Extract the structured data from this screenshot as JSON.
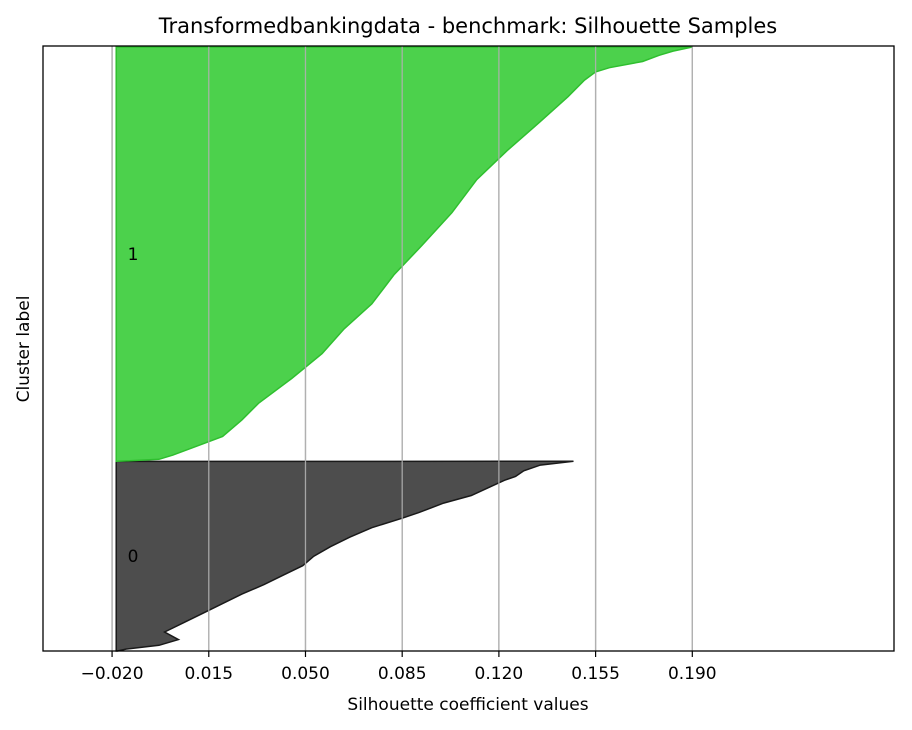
{
  "chart_data": {
    "type": "area",
    "title": "Transformedbankingdata - benchmark: Silhouette Samples",
    "xlabel": "Silhouette coefficient values",
    "ylabel": "Cluster label",
    "xlim": [
      -0.045,
      0.263
    ],
    "x_ticks": [
      -0.02,
      0.015,
      0.05,
      0.085,
      0.12,
      0.155,
      0.19
    ],
    "x_tick_labels": [
      "−0.020",
      "0.015",
      "0.050",
      "0.085",
      "0.120",
      "0.155",
      "0.190"
    ],
    "grid": "vertical",
    "clusters": [
      {
        "label": "0",
        "color": "#4d4d4d",
        "edge_color": "#1a1a1a",
        "size_fraction": 0.314,
        "profile": [
          [
            0.0,
            0.147
          ],
          [
            0.02,
            0.135
          ],
          [
            0.05,
            0.129
          ],
          [
            0.08,
            0.126
          ],
          [
            0.1,
            0.122
          ],
          [
            0.14,
            0.116
          ],
          [
            0.18,
            0.11
          ],
          [
            0.22,
            0.1
          ],
          [
            0.27,
            0.091
          ],
          [
            0.3,
            0.085
          ],
          [
            0.35,
            0.074
          ],
          [
            0.4,
            0.066
          ],
          [
            0.45,
            0.059
          ],
          [
            0.5,
            0.053
          ],
          [
            0.55,
            0.049
          ],
          [
            0.6,
            0.042
          ],
          [
            0.65,
            0.035
          ],
          [
            0.7,
            0.027
          ],
          [
            0.75,
            0.02
          ],
          [
            0.8,
            0.013
          ],
          [
            0.85,
            0.006
          ],
          [
            0.9,
            -0.001
          ],
          [
            0.94,
            0.004
          ],
          [
            0.97,
            -0.003
          ],
          [
            0.99,
            -0.015
          ],
          [
            1.0,
            -0.018
          ]
        ]
      },
      {
        "label": "1",
        "color": "#4cd14c",
        "edge_color": "#2fbf2f",
        "size_fraction": 0.686,
        "profile": [
          [
            0.0,
            0.19
          ],
          [
            0.01,
            0.183
          ],
          [
            0.02,
            0.178
          ],
          [
            0.035,
            0.172
          ],
          [
            0.05,
            0.16
          ],
          [
            0.06,
            0.155
          ],
          [
            0.08,
            0.151
          ],
          [
            0.12,
            0.145
          ],
          [
            0.18,
            0.135
          ],
          [
            0.25,
            0.123
          ],
          [
            0.32,
            0.112
          ],
          [
            0.4,
            0.103
          ],
          [
            0.48,
            0.092
          ],
          [
            0.55,
            0.082
          ],
          [
            0.62,
            0.074
          ],
          [
            0.68,
            0.064
          ],
          [
            0.74,
            0.056
          ],
          [
            0.8,
            0.045
          ],
          [
            0.86,
            0.033
          ],
          [
            0.9,
            0.027
          ],
          [
            0.94,
            0.02
          ],
          [
            0.965,
            0.01
          ],
          [
            0.985,
            0.002
          ],
          [
            0.995,
            -0.003
          ],
          [
            1.0,
            -0.018
          ]
        ]
      }
    ]
  }
}
